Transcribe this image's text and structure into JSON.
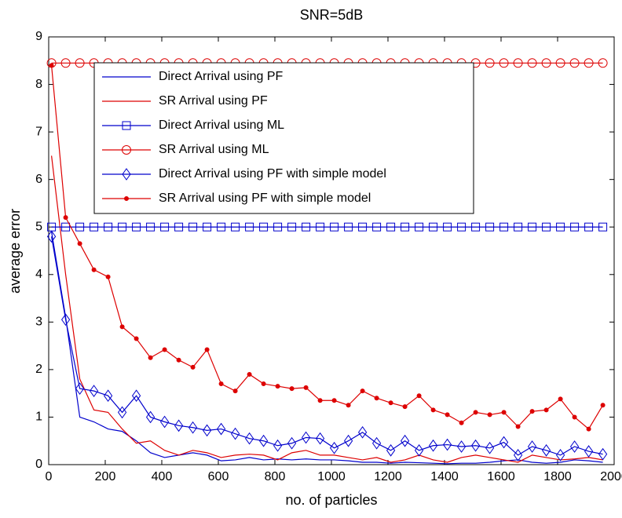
{
  "chart_data": {
    "type": "line",
    "title": "SNR=5dB",
    "x_label": "no. of particles",
    "y_label": "average error",
    "x": [
      10,
      60,
      110,
      160,
      210,
      260,
      310,
      360,
      410,
      460,
      510,
      560,
      610,
      660,
      710,
      760,
      810,
      860,
      910,
      960,
      1010,
      1060,
      1110,
      1160,
      1210,
      1260,
      1310,
      1360,
      1410,
      1460,
      1510,
      1560,
      1610,
      1660,
      1710,
      1760,
      1810,
      1860,
      1910,
      1960
    ],
    "series": [
      {
        "name": "Direct Arrival using PF",
        "color": "#0000cc",
        "marker": "none",
        "values": [
          4.9,
          3.1,
          1.0,
          0.9,
          0.75,
          0.7,
          0.5,
          0.25,
          0.15,
          0.2,
          0.25,
          0.2,
          0.08,
          0.1,
          0.15,
          0.1,
          0.12,
          0.1,
          0.12,
          0.1,
          0.1,
          0.08,
          0.05,
          0.05,
          0.03,
          0.05,
          0.04,
          0.03,
          0.02,
          0.03,
          0.03,
          0.05,
          0.08,
          0.1,
          0.05,
          0.03,
          0.05,
          0.1,
          0.08,
          0.05
        ]
      },
      {
        "name": "SR Arrival using PF",
        "color": "#dd0000",
        "marker": "none",
        "values": [
          6.5,
          4.0,
          1.8,
          1.15,
          1.1,
          0.75,
          0.45,
          0.5,
          0.3,
          0.2,
          0.3,
          0.25,
          0.15,
          0.2,
          0.22,
          0.2,
          0.1,
          0.25,
          0.3,
          0.2,
          0.2,
          0.15,
          0.1,
          0.15,
          0.05,
          0.1,
          0.2,
          0.1,
          0.05,
          0.15,
          0.2,
          0.15,
          0.1,
          0.05,
          0.2,
          0.15,
          0.1,
          0.12,
          0.15,
          0.1
        ]
      },
      {
        "name": "Direct Arrival using ML",
        "color": "#0000cc",
        "marker": "square",
        "values": [
          5,
          5,
          5,
          5,
          5,
          5,
          5,
          5,
          5,
          5,
          5,
          5,
          5,
          5,
          5,
          5,
          5,
          5,
          5,
          5,
          5,
          5,
          5,
          5,
          5,
          5,
          5,
          5,
          5,
          5,
          5,
          5,
          5,
          5,
          5,
          5,
          5,
          5,
          5,
          5
        ]
      },
      {
        "name": "SR Arrival using ML",
        "color": "#dd0000",
        "marker": "circle",
        "values": [
          8.45,
          8.45,
          8.45,
          8.45,
          8.45,
          8.45,
          8.45,
          8.45,
          8.45,
          8.45,
          8.45,
          8.45,
          8.45,
          8.45,
          8.45,
          8.45,
          8.45,
          8.45,
          8.45,
          8.45,
          8.45,
          8.45,
          8.45,
          8.45,
          8.45,
          8.45,
          8.45,
          8.45,
          8.45,
          8.45,
          8.45,
          8.45,
          8.45,
          8.45,
          8.45,
          8.45,
          8.45,
          8.45,
          8.45,
          8.45
        ]
      },
      {
        "name": "Direct Arrival using PF with simple model",
        "color": "#0000cc",
        "marker": "diamond",
        "values": [
          4.8,
          3.05,
          1.6,
          1.55,
          1.45,
          1.1,
          1.45,
          1.0,
          0.9,
          0.82,
          0.78,
          0.72,
          0.75,
          0.65,
          0.55,
          0.5,
          0.4,
          0.45,
          0.57,
          0.55,
          0.35,
          0.5,
          0.68,
          0.45,
          0.3,
          0.5,
          0.3,
          0.4,
          0.42,
          0.38,
          0.4,
          0.35,
          0.47,
          0.2,
          0.38,
          0.3,
          0.2,
          0.38,
          0.28,
          0.22
        ]
      },
      {
        "name": "SR Arrival using PF with simple model",
        "color": "#dd0000",
        "marker": "dot",
        "values": [
          8.4,
          5.2,
          4.65,
          4.1,
          3.95,
          2.9,
          2.65,
          2.25,
          2.42,
          2.2,
          2.05,
          2.42,
          1.7,
          1.55,
          1.9,
          1.7,
          1.65,
          1.6,
          1.62,
          1.35,
          1.35,
          1.25,
          1.55,
          1.4,
          1.3,
          1.22,
          1.45,
          1.15,
          1.05,
          0.88,
          1.1,
          1.05,
          1.1,
          0.8,
          1.12,
          1.15,
          1.38,
          1.0,
          0.75,
          1.25
        ]
      }
    ],
    "xlim": [
      0,
      2000
    ],
    "xticks": [
      0,
      200,
      400,
      600,
      800,
      1000,
      1200,
      1400,
      1600,
      1800,
      2000
    ],
    "ylim": [
      0,
      9
    ],
    "yticks": [
      0,
      1,
      2,
      3,
      4,
      5,
      6,
      7,
      8,
      9
    ],
    "grid": false,
    "legend": "upper center"
  }
}
